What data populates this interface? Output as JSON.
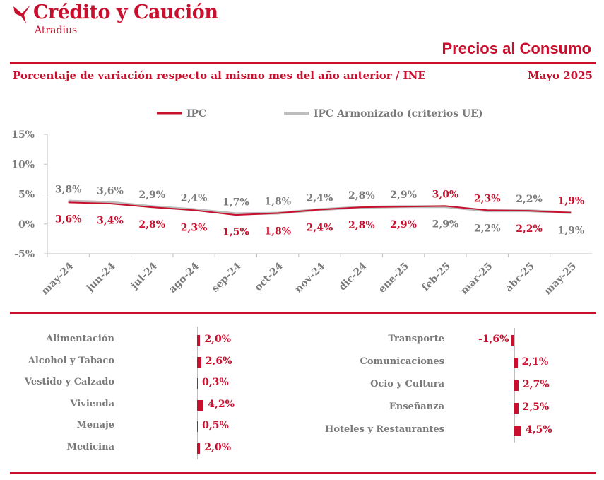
{
  "header": {
    "brand": "Crédito y Caución",
    "brand_sub": "Atradius",
    "page_title": "Precios al Consumo",
    "subtitle": "Porcentaje de variación respecto al mismo mes del año anterior / INE",
    "date": "Mayo  2025"
  },
  "colors": {
    "accent": "#c8102e",
    "gray": "#7a7a7a",
    "series_gray": "#bdbdbd"
  },
  "chart_data": [
    {
      "type": "line",
      "x": [
        "may-24",
        "jun-24",
        "jul-24",
        "ago-24",
        "sep-24",
        "oct-24",
        "nov-24",
        "dic-24",
        "ene-25",
        "feb-25",
        "mar-25",
        "abr-25",
        "may-25"
      ],
      "series": [
        {
          "name": "IPC",
          "values": [
            3.6,
            3.4,
            2.8,
            2.3,
            1.5,
            1.8,
            2.4,
            2.8,
            2.9,
            3.0,
            2.3,
            2.2,
            1.9
          ],
          "labels": [
            "3,6%",
            "3,4%",
            "2,8%",
            "2,3%",
            "1,5%",
            "1,8%",
            "2,4%",
            "2,8%",
            "2,9%",
            "3,0%",
            "2,3%",
            "2,2%",
            "1,9%"
          ]
        },
        {
          "name": "IPC Armonizado (criterios UE)",
          "values": [
            3.8,
            3.6,
            2.9,
            2.4,
            1.7,
            1.8,
            2.4,
            2.8,
            2.9,
            2.9,
            2.2,
            2.2,
            1.9
          ],
          "labels": [
            "3,8%",
            "3,6%",
            "2,9%",
            "2,4%",
            "1,7%",
            "1,8%",
            "2,4%",
            "2,8%",
            "2,9%",
            "2,9%",
            "2,2%",
            "2,2%",
            "1,9%"
          ]
        }
      ],
      "yticks": [
        "15%",
        "10%",
        "5%",
        "0%",
        "-5%"
      ],
      "ytick_values": [
        15,
        10,
        5,
        0,
        -5
      ],
      "ylim": [
        -5,
        15
      ],
      "legend_position": "top"
    },
    {
      "type": "bar",
      "categories": [
        "Alimentación",
        "Alcohol y Tabaco",
        "Vestido y Calzado",
        "Vivienda",
        "Menaje",
        "Medicina"
      ],
      "values": [
        2.0,
        2.6,
        0.3,
        4.2,
        0.5,
        2.0
      ],
      "labels": [
        "2,0%",
        "2,6%",
        "0,3%",
        "4,2%",
        "0,5%",
        "2,0%"
      ]
    },
    {
      "type": "bar",
      "categories": [
        "Transporte",
        "Comunicaciones",
        "Ocio y Cultura",
        "Enseñanza",
        "Hoteles y Restaurantes"
      ],
      "values": [
        -1.6,
        2.1,
        2.7,
        2.5,
        4.5
      ],
      "labels": [
        "-1,6%",
        "2,1%",
        "2,7%",
        "2,5%",
        "4,5%"
      ]
    }
  ]
}
